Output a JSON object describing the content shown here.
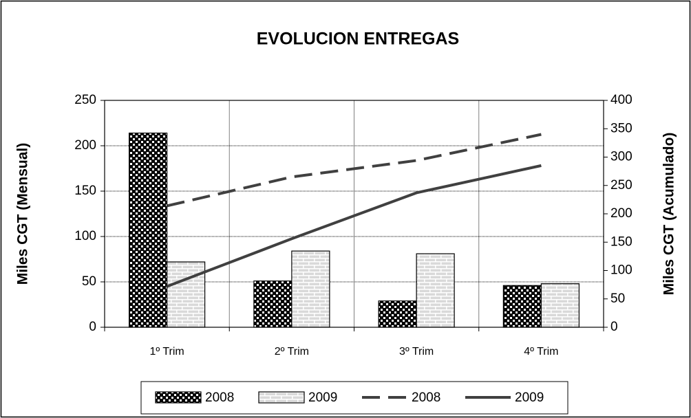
{
  "chart_data": {
    "type": "bar",
    "title": "EVOLUCION ENTREGAS",
    "y_label": "Miles CGT (Mensual)",
    "y2_label": "Miles CGT (Acumulado)",
    "categories": [
      "1º Trim",
      "2º Trim",
      "3º Trim",
      "4º Trim"
    ],
    "series": [
      {
        "name": "2008",
        "type": "bar",
        "pattern": "checker",
        "color": "#000000",
        "values": [
          214,
          51,
          29,
          46
        ]
      },
      {
        "name": "2009",
        "type": "bar",
        "pattern": "brick",
        "color": "#d9d9d9",
        "values": [
          72,
          84,
          81,
          48
        ]
      },
      {
        "name": "2008",
        "type": "line",
        "axis": "y2",
        "dash": "dashed",
        "color": "#404040",
        "values": [
          214,
          265,
          294,
          340
        ]
      },
      {
        "name": "2009",
        "type": "line",
        "axis": "y2",
        "dash": "solid",
        "color": "#404040",
        "values": [
          72,
          156,
          237,
          285
        ]
      }
    ],
    "ylim": [
      0,
      250
    ],
    "yticks": [
      0,
      50,
      100,
      150,
      200,
      250
    ],
    "y2lim": [
      0,
      400
    ],
    "y2ticks": [
      0,
      50,
      100,
      150,
      200,
      250,
      300,
      350,
      400
    ],
    "grid": true,
    "legend": "bottom"
  }
}
